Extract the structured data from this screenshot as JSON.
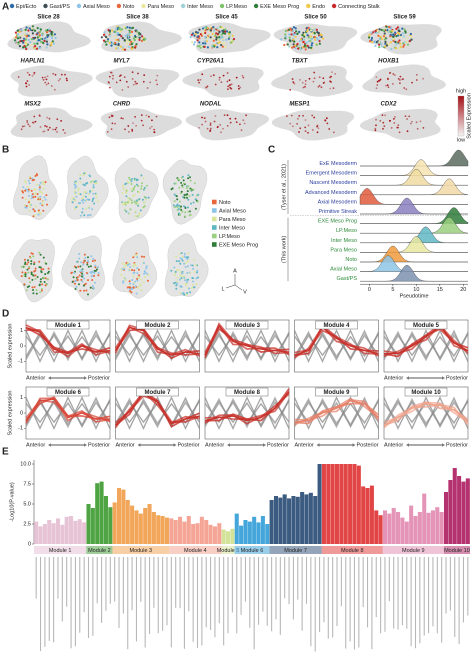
{
  "chart_data": [
    {
      "type": "spatial-map",
      "panel_label": "A",
      "legend": [
        {
          "name": "Epi/Ecto",
          "color": "#2d6aa8"
        },
        {
          "name": "Gast/PS",
          "color": "#3f4f55"
        },
        {
          "name": "Axial Meso",
          "color": "#8ec5e6"
        },
        {
          "name": "Noto",
          "color": "#e8673a"
        },
        {
          "name": "Para Meso",
          "color": "#e9e7a0"
        },
        {
          "name": "Inter Meso",
          "color": "#9fd0d8"
        },
        {
          "name": "LP.Meso",
          "color": "#7cc36a"
        },
        {
          "name": "EXE Meso Prog",
          "color": "#2f7d3a"
        },
        {
          "name": "Endo",
          "color": "#f1c94a"
        },
        {
          "name": "Connecting Stalk",
          "color": "#c8282c"
        }
      ],
      "slices": [
        "Slice 28",
        "Slice 38",
        "Slice 45",
        "Slice 50",
        "Slice 59"
      ],
      "genes": [
        "HAPLN1",
        "MYL7",
        "CYP26A1",
        "TBXT",
        "HOXB1",
        "MSX2",
        "CHRD",
        "NODAL",
        "MESP1",
        "CDX2"
      ],
      "scale": {
        "title": "Scaled Expression",
        "high": "high",
        "low": "low",
        "color": "#a50f15"
      }
    },
    {
      "type": "spatial-3d",
      "panel_label": "B",
      "legend": [
        {
          "name": "Noto",
          "color": "#e8673a"
        },
        {
          "name": "Axial Meso",
          "color": "#8ec5e6"
        },
        {
          "name": "Para Meso",
          "color": "#d9e59a"
        },
        {
          "name": "Inter Meso",
          "color": "#5fb7c4"
        },
        {
          "name": "LP.Meso",
          "color": "#9ad07f"
        },
        {
          "name": "EXE Meso Prog",
          "color": "#2f7d3a"
        }
      ],
      "orientation": [
        "A",
        "L",
        "V"
      ]
    },
    {
      "type": "ridgeline",
      "panel_label": "C",
      "xlabel": "Pseudotime",
      "xlim": [
        -2,
        21
      ],
      "xticks": [
        0,
        5,
        10,
        15,
        20
      ],
      "groups": [
        {
          "label": "(Tyser et al., 2021)",
          "color": "#2b3f9e",
          "series": [
            {
              "name": "ExE Mesoderm",
              "color": "#5b6b5f",
              "peak": 19
            },
            {
              "name": "Emergent Mesoderm",
              "color": "#f4e3b0",
              "peak": 11
            },
            {
              "name": "Nascent Mesoderm",
              "color": "#f0dca0",
              "peak": 10
            },
            {
              "name": "Advanced Mesoderm",
              "color": "#f2d9a8",
              "peak": 17
            },
            {
              "name": "Axial Mesoderm",
              "color": "#e05a3c",
              "peak": -0.5
            },
            {
              "name": "Primitive Streak",
              "color": "#8a7fc0",
              "peak": 8
            }
          ]
        },
        {
          "label": "(This work)",
          "color": "#2e8b3a",
          "series": [
            {
              "name": "EXE Meso Prog",
              "color": "#2f7d3a",
              "peak": 18
            },
            {
              "name": "LP.Meso",
              "color": "#9ad07f",
              "peak": 17
            },
            {
              "name": "Inter Meso",
              "color": "#5fb7c4",
              "peak": 12
            },
            {
              "name": "Para Meso",
              "color": "#e9e7a0",
              "peak": 10
            },
            {
              "name": "Noto",
              "color": "#f09a3c",
              "peak": 5
            },
            {
              "name": "Axial Meso",
              "color": "#8ec5e6",
              "peak": 4
            },
            {
              "name": "Gast/PS",
              "color": "#7d90b0",
              "peak": 8
            }
          ]
        }
      ]
    },
    {
      "type": "line-grid",
      "panel_label": "D",
      "ylabel": "Scaled expression",
      "x_start": "Anterior",
      "x_end": "Posterior",
      "ylim": [
        -1.7,
        1.7
      ],
      "yticks": [
        1,
        0,
        -1
      ],
      "series": [
        {
          "name": "Module 1",
          "color": "#c8322a",
          "values": [
            1.2,
            0.9,
            -0.2,
            -0.5,
            0.0,
            -0.4,
            -0.3
          ]
        },
        {
          "name": "Module 2",
          "color": "#c8322a",
          "values": [
            -0.3,
            1.2,
            1.0,
            -0.2,
            -0.6,
            -0.4,
            -0.5
          ]
        },
        {
          "name": "Module 3",
          "color": "#c8322a",
          "values": [
            -0.6,
            1.3,
            0.3,
            0.0,
            -0.2,
            -0.3,
            -0.4
          ]
        },
        {
          "name": "Module 4",
          "color": "#c8322a",
          "values": [
            -0.6,
            -0.3,
            1.2,
            0.5,
            0.0,
            -0.3,
            -0.5
          ]
        },
        {
          "name": "Module 5",
          "color": "#c8322a",
          "values": [
            -0.5,
            -0.5,
            0.0,
            0.6,
            1.3,
            0.2,
            -0.3
          ]
        },
        {
          "name": "Module 6",
          "color": "#d9473a",
          "values": [
            -0.5,
            0.8,
            0.9,
            -0.3,
            0.0,
            -0.4,
            -0.4
          ]
        },
        {
          "name": "Module 7",
          "color": "#c8322a",
          "values": [
            -0.8,
            0.1,
            1.3,
            0.7,
            -0.7,
            -0.4,
            -0.2
          ]
        },
        {
          "name": "Module 8",
          "color": "#c8322a",
          "values": [
            -0.5,
            -0.3,
            -0.2,
            -0.5,
            -0.3,
            0.3,
            1.4
          ]
        },
        {
          "name": "Module 9",
          "color": "#e8826a",
          "values": [
            -0.6,
            -0.5,
            0.0,
            0.3,
            0.8,
            0.6,
            -0.3
          ]
        },
        {
          "name": "Module 10",
          "color": "#f0a48c",
          "values": [
            -0.8,
            -0.3,
            0.3,
            0.6,
            0.5,
            0.2,
            -0.6
          ]
        }
      ]
    },
    {
      "type": "bar",
      "panel_label": "E",
      "ylabel": "-Log10(P-value)",
      "ylim": [
        0,
        10.5
      ],
      "yticks": [
        0,
        2.5,
        {
          "value": 5,
          "label": "5.0"
        },
        7.5,
        {
          "value": 10,
          "label": "10.0"
        }
      ],
      "series": [
        {
          "name": "Module 1",
          "color": "#e7c3d6",
          "values": [
            2.8,
            2.2,
            2.5,
            3.0,
            2.6,
            3.2,
            2.4,
            3.4,
            3.5,
            2.9,
            3.1,
            2.7
          ]
        },
        {
          "name": "Module 2",
          "color": "#4ea443",
          "values": [
            5.0,
            4.5,
            7.6,
            7.8,
            6.0,
            4.6
          ]
        },
        {
          "name": "Module 3",
          "color": "#f2a65a",
          "values": [
            5.2,
            7.0,
            6.8,
            5.5,
            4.8,
            4.2,
            3.8,
            4.5,
            5.0,
            4.0,
            3.6,
            3.5,
            3.3
          ]
        },
        {
          "name": "Module 4",
          "color": "#f4a596",
          "values": [
            3.2,
            3.0,
            3.4,
            2.8,
            3.5,
            2.5,
            2.6,
            3.4,
            3.0,
            2.4,
            2.2,
            2.6
          ]
        },
        {
          "name": "Module 5",
          "color": "#d3e39a",
          "values": [
            1.8,
            1.6,
            1.9
          ]
        },
        {
          "name": "Module 6",
          "color": "#45a6db",
          "values": [
            3.8,
            2.3,
            3.0,
            2.8,
            3.4,
            2.7,
            3.5,
            2.5
          ]
        },
        {
          "name": "Module 7",
          "color": "#3c5b80",
          "values": [
            5.5,
            6.0,
            5.8,
            6.2,
            5.7,
            6.0,
            5.9,
            6.5,
            6.2,
            6.4,
            6.0,
            10.0
          ]
        },
        {
          "name": "Module 8",
          "color": "#e24545",
          "values": [
            10.0,
            10.0,
            10.0,
            10.0,
            10.0,
            10.0,
            10.0,
            10.0,
            9.8,
            7.2,
            7.0,
            7.3,
            4.2,
            3.6
          ]
        },
        {
          "name": "Module 9",
          "color": "#e494b6",
          "values": [
            4.2,
            3.8,
            4.5,
            4.0,
            3.3,
            2.8,
            4.8,
            3.5,
            4.0,
            6.3,
            3.9,
            4.2,
            4.6,
            4.0
          ]
        },
        {
          "name": "Module 10",
          "color": "#b3326f",
          "values": [
            6.5,
            8.0,
            9.5,
            8.5,
            7.8,
            8.2
          ]
        }
      ]
    }
  ]
}
